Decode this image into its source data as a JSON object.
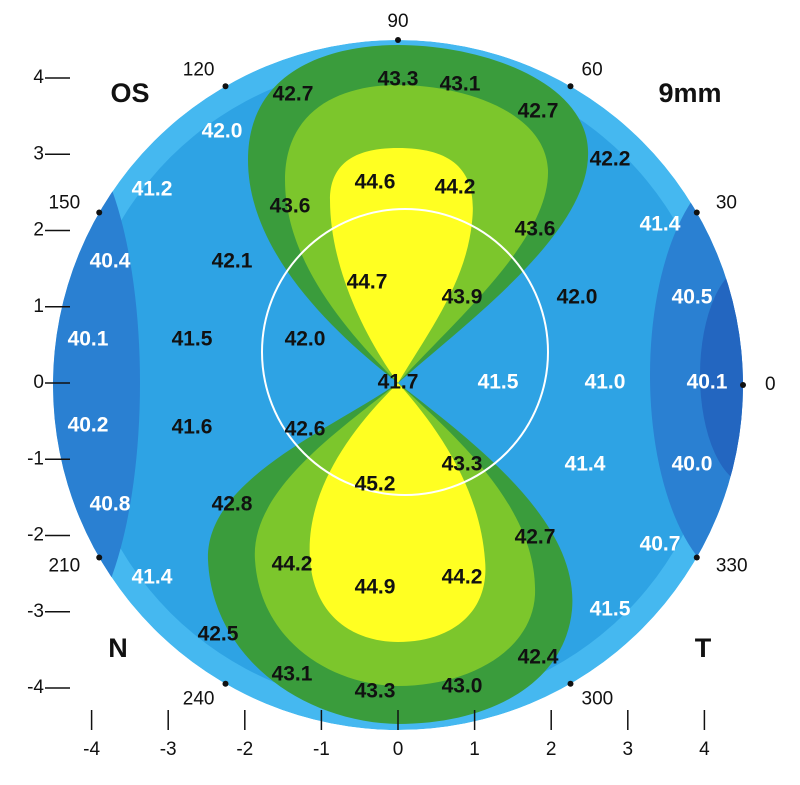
{
  "labels": {
    "eye": "OS",
    "zone": "9mm",
    "nasal": "N",
    "temporal": "T"
  },
  "angle_labels": [
    90,
    60,
    30,
    0,
    330,
    300,
    240,
    210,
    150,
    120
  ],
  "x_axis_ticks": [
    -4,
    -3,
    -2,
    -1,
    0,
    1,
    2,
    3,
    4
  ],
  "y_axis_ticks": [
    4,
    3,
    2,
    1,
    0,
    -1,
    -2,
    -3,
    -4
  ],
  "readings": [
    "43.3",
    "43.1",
    "42.7",
    "42.7",
    "42.0",
    "42.2",
    "41.2",
    "44.6",
    "44.2",
    "43.6",
    "43.6",
    "41.4",
    "40.4",
    "42.1",
    "44.7",
    "43.9",
    "42.0",
    "40.5",
    "40.1",
    "41.5",
    "42.0",
    "41.7",
    "41.5",
    "41.0",
    "40.1",
    "40.2",
    "41.6",
    "42.6",
    "43.3",
    "41.4",
    "40.0",
    "45.2",
    "42.8",
    "40.8",
    "42.7",
    "44.2",
    "44.9",
    "44.2",
    "40.7",
    "41.4",
    "41.5",
    "42.5",
    "42.4",
    "43.1",
    "43.3",
    "43.0"
  ]
}
